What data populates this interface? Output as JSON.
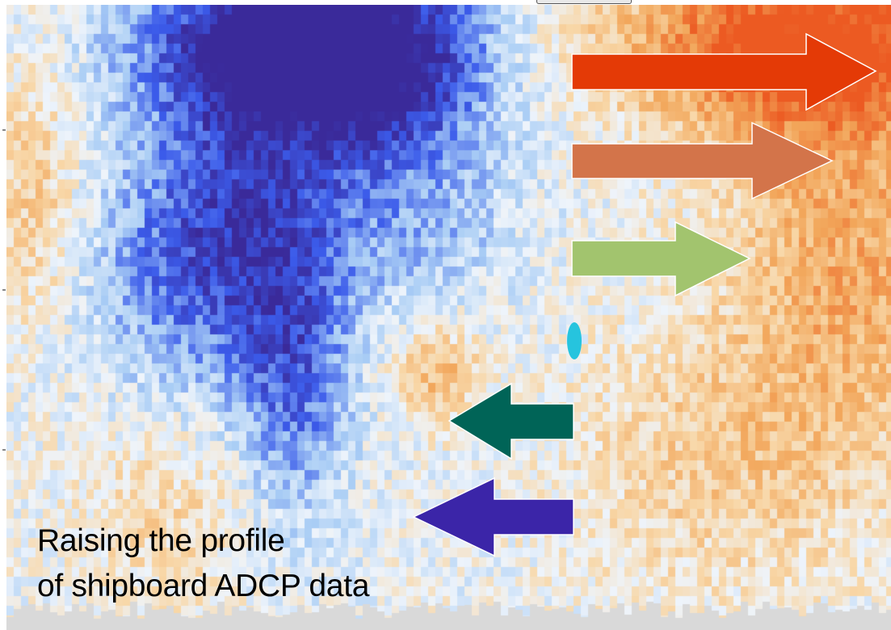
{
  "caption": {
    "line1": "Raising the profile",
    "line2": "of shipboard ADCP data"
  },
  "colors": {
    "deep_blue": "#3a2a9a",
    "blue": "#3b5bea",
    "light_blue": "#a9cdf5",
    "pale": "#eef4fb",
    "pale_orange": "#f8d7a8",
    "orange": "#f2a65a",
    "red_orange": "#ec5a22",
    "arrow_red": "#e43a06",
    "arrow_orange": "#d3744a",
    "arrow_green": "#a2c46e",
    "arrow_teal": "#006457",
    "arrow_purple": "#3b25a8",
    "marker_cyan": "#26c4de",
    "bottom_mask": "#d9d9d9"
  },
  "arrows": [
    {
      "name": "arrow-red-right",
      "direction": "right",
      "color_key": "arrow_red"
    },
    {
      "name": "arrow-orange-right",
      "direction": "right",
      "color_key": "arrow_orange"
    },
    {
      "name": "arrow-green-right",
      "direction": "right",
      "color_key": "arrow_green"
    },
    {
      "name": "arrow-teal-left",
      "direction": "left",
      "color_key": "arrow_teal"
    },
    {
      "name": "arrow-purple-left",
      "direction": "left",
      "color_key": "arrow_purple"
    }
  ]
}
